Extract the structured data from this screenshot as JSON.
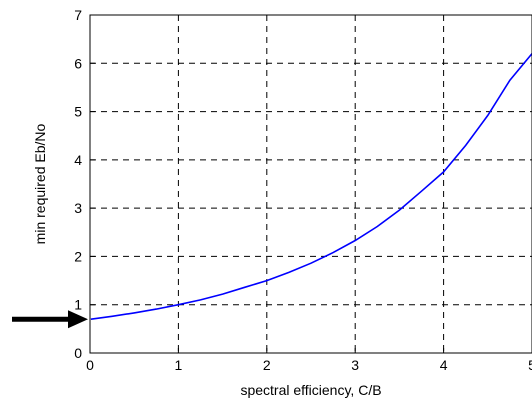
{
  "chart_data": {
    "type": "line",
    "title": "",
    "xlabel": "spectral efficiency, C/B",
    "ylabel": "min required Eb/No",
    "xlim": [
      0,
      5
    ],
    "ylim": [
      0,
      7
    ],
    "xticks": [
      "0",
      "1",
      "2",
      "3",
      "4",
      "5"
    ],
    "yticks": [
      "0",
      "1",
      "2",
      "3",
      "4",
      "5",
      "6",
      "7"
    ],
    "grid": true,
    "legend": "none",
    "series": [
      {
        "color": "#0000ff",
        "x": [
          0.01,
          0.25,
          0.5,
          0.75,
          1.0,
          1.25,
          1.5,
          1.75,
          2.0,
          2.25,
          2.5,
          2.75,
          3.0,
          3.25,
          3.5,
          3.75,
          4.0,
          4.25,
          4.5,
          4.75,
          5.0
        ],
        "y": [
          0.7,
          0.76,
          0.83,
          0.91,
          1.0,
          1.1,
          1.22,
          1.36,
          1.5,
          1.67,
          1.86,
          2.08,
          2.33,
          2.62,
          2.96,
          3.35,
          3.75,
          4.3,
          4.92,
          5.65,
          6.2
        ]
      }
    ],
    "annotations": [
      {
        "type": "arrow",
        "points_to_y": 0.7,
        "color": "#000000"
      }
    ]
  }
}
